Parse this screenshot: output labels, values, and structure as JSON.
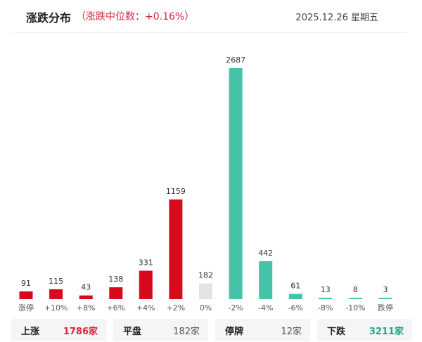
{
  "header": {
    "title": "涨跌分布",
    "subtitle": "（涨跌中位数：+0.16%）",
    "date": "2025.12.26  星期五"
  },
  "colors": {
    "up": "#d7091c",
    "flat": "#e3e3e6",
    "down": "#45c3a8"
  },
  "chart_data": {
    "type": "bar",
    "title": "涨跌分布",
    "categories": [
      "涨停",
      "+10%",
      "+8%",
      "+6%",
      "+4%",
      "+2%",
      "0%",
      "-2%",
      "-4%",
      "-6%",
      "-8%",
      "-10%",
      "跌停"
    ],
    "values": [
      91,
      115,
      43,
      138,
      331,
      1159,
      182,
      2687,
      442,
      61,
      13,
      8,
      3
    ],
    "bar_colors": [
      "up",
      "up",
      "up",
      "up",
      "up",
      "up",
      "flat",
      "down",
      "down",
      "down",
      "down",
      "down",
      "down"
    ],
    "ylim": [
      0,
      2687
    ],
    "grid": false,
    "xlabel": "",
    "ylabel": ""
  },
  "summary": [
    {
      "label": "上涨",
      "value": "1786家",
      "style": "up"
    },
    {
      "label": "平盘",
      "value": "182家",
      "style": "normal"
    },
    {
      "label": "停牌",
      "value": "12家",
      "style": "normal"
    },
    {
      "label": "下跌",
      "value": "3211家",
      "style": "down"
    }
  ]
}
